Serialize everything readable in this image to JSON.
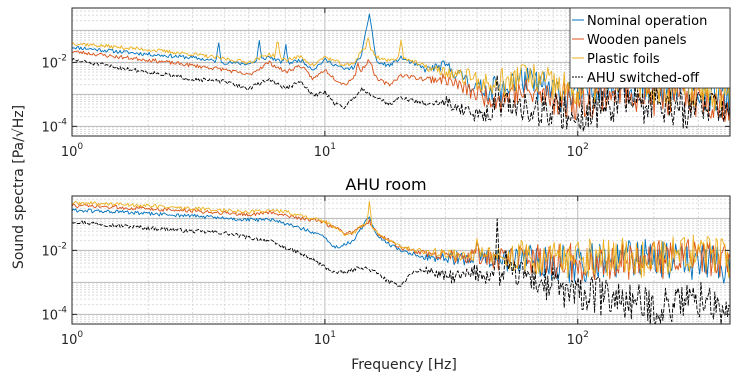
{
  "figure": {
    "ylabel": "Sound spectra [Pa/√Hz]",
    "xlabel": "Frequency [Hz]"
  },
  "chart_data": [
    {
      "type": "line",
      "title": "",
      "xlabel": "",
      "xscale": "log",
      "yscale": "log",
      "xlim": [
        1,
        400
      ],
      "ylim": [
        5e-05,
        0.5
      ],
      "xticks": [
        {
          "v": 1,
          "base": "10",
          "exp": "0"
        },
        {
          "v": 10,
          "base": "10",
          "exp": "1"
        },
        {
          "v": 100,
          "base": "10",
          "exp": "2"
        }
      ],
      "yticks": [
        {
          "v": 0.01,
          "base": "10",
          "exp": "-2"
        },
        {
          "v": 0.0001,
          "base": "10",
          "exp": "-4"
        }
      ],
      "grid": true,
      "legend": "top-right",
      "series": [
        {
          "name": "Nominal operation",
          "color": "#0072BD",
          "dash": "",
          "seed": 11,
          "x": [
            1,
            1.5,
            2,
            3,
            4,
            5,
            6,
            7,
            8,
            9,
            10,
            12,
            13,
            14,
            15,
            16,
            18,
            20,
            25,
            30,
            40,
            50,
            60,
            80,
            100,
            150,
            200,
            300,
            400
          ],
          "y": [
            0.03,
            0.022,
            0.018,
            0.014,
            0.01,
            0.009,
            0.015,
            0.009,
            0.012,
            0.006,
            0.012,
            0.006,
            0.007,
            0.018,
            0.35,
            0.01,
            0.008,
            0.014,
            0.006,
            0.008,
            0.0015,
            0.0012,
            0.003,
            0.0012,
            0.0009,
            0.003,
            0.0012,
            0.0012,
            0.0008
          ],
          "spikes": [
            [
              3.8,
              0.045
            ],
            [
              5.5,
              0.05
            ],
            [
              7,
              0.04
            ],
            [
              36,
              0.004
            ],
            [
              47,
              0.004
            ],
            [
              55,
              0.005
            ],
            [
              120,
              0.002
            ],
            [
              150,
              0.009
            ],
            [
              205,
              0.004
            ]
          ]
        },
        {
          "name": "Wooden panels",
          "color": "#D95319",
          "dash": "",
          "seed": 23,
          "x": [
            1,
            1.5,
            2,
            3,
            4,
            5,
            6,
            7,
            8,
            9,
            10,
            11,
            12,
            14,
            15,
            16,
            18,
            20,
            25,
            30,
            40,
            50,
            60,
            80,
            100,
            150,
            200,
            300,
            400
          ],
          "y": [
            0.022,
            0.015,
            0.012,
            0.008,
            0.006,
            0.004,
            0.01,
            0.005,
            0.008,
            0.003,
            0.006,
            0.003,
            0.002,
            0.006,
            0.012,
            0.003,
            0.002,
            0.004,
            0.003,
            0.003,
            0.001,
            0.0007,
            0.0012,
            0.0008,
            0.0006,
            0.0015,
            0.0008,
            0.0008,
            0.0005
          ],
          "spikes": [
            [
              13.5,
              0.01
            ],
            [
              55,
              0.002
            ],
            [
              150,
              0.0025
            ],
            [
              300,
              0.0018
            ]
          ]
        },
        {
          "name": "Plastic foils",
          "color": "#EDB120",
          "dash": "",
          "seed": 37,
          "x": [
            1,
            1.5,
            2,
            3,
            4,
            5,
            6,
            7,
            8,
            9,
            10,
            12,
            13,
            14,
            15,
            16,
            18,
            20,
            25,
            30,
            40,
            50,
            60,
            80,
            100,
            150,
            200,
            300,
            400
          ],
          "y": [
            0.04,
            0.03,
            0.025,
            0.018,
            0.013,
            0.01,
            0.018,
            0.012,
            0.015,
            0.008,
            0.015,
            0.008,
            0.009,
            0.025,
            0.03,
            0.015,
            0.011,
            0.016,
            0.007,
            0.005,
            0.0025,
            0.0015,
            0.004,
            0.0018,
            0.0012,
            0.006,
            0.002,
            0.0015,
            0.001
          ],
          "spikes": [
            [
              6.5,
              0.06
            ],
            [
              14.8,
              0.06
            ],
            [
              20,
              0.05
            ],
            [
              37,
              0.008
            ],
            [
              50,
              0.008
            ],
            [
              60,
              0.01
            ],
            [
              110,
              0.006
            ],
            [
              140,
              0.012
            ],
            [
              250,
              0.008
            ],
            [
              360,
              0.004
            ]
          ]
        },
        {
          "name": "AHU switched-off",
          "color": "#000000",
          "dash": "4,1.5",
          "seed": 51,
          "x": [
            1,
            1.5,
            2,
            3,
            4,
            5,
            6,
            7,
            8,
            9,
            10,
            11,
            12,
            14,
            16,
            18,
            20,
            25,
            30,
            40,
            50,
            60,
            80,
            100,
            150,
            200,
            300,
            400
          ],
          "y": [
            0.012,
            0.007,
            0.005,
            0.003,
            0.0025,
            0.0015,
            0.003,
            0.0015,
            0.0025,
            0.0009,
            0.0012,
            0.0005,
            0.0004,
            0.0015,
            0.0008,
            0.0005,
            0.0008,
            0.0005,
            0.0006,
            0.0002,
            0.0005,
            0.0004,
            0.0003,
            0.0002,
            0.0007,
            0.0004,
            0.0003,
            0.0003
          ],
          "spikes": [
            [
              48,
              0.004
            ],
            [
              150,
              0.003
            ],
            [
              205,
              0.002
            ],
            [
              300,
              0.0012
            ],
            [
              350,
              0.0015
            ]
          ]
        }
      ]
    },
    {
      "type": "line",
      "title": "AHU room",
      "xlabel": "",
      "xscale": "log",
      "yscale": "log",
      "xlim": [
        1,
        400
      ],
      "ylim": [
        5e-05,
        0.5
      ],
      "xticks": [
        {
          "v": 1,
          "base": "10",
          "exp": "0"
        },
        {
          "v": 10,
          "base": "10",
          "exp": "1"
        },
        {
          "v": 100,
          "base": "10",
          "exp": "2"
        }
      ],
      "yticks": [
        {
          "v": 0.01,
          "base": "10",
          "exp": "-2"
        },
        {
          "v": 0.0001,
          "base": "10",
          "exp": "-4"
        }
      ],
      "grid": true,
      "legend": "",
      "series": [
        {
          "name": "",
          "color": "#0072BD",
          "dash": "",
          "seed": 61,
          "x": [
            1,
            1.5,
            2,
            3,
            4,
            5,
            6,
            7,
            8,
            9,
            10,
            11,
            12,
            13,
            14,
            15,
            16,
            18,
            20,
            25,
            30,
            40,
            50,
            60,
            80,
            100,
            150,
            200,
            300,
            400
          ],
          "y": [
            0.18,
            0.16,
            0.14,
            0.12,
            0.1,
            0.09,
            0.09,
            0.07,
            0.05,
            0.035,
            0.025,
            0.012,
            0.015,
            0.02,
            0.05,
            0.12,
            0.03,
            0.015,
            0.01,
            0.006,
            0.006,
            0.005,
            0.004,
            0.006,
            0.004,
            0.004,
            0.005,
            0.006,
            0.004,
            0.003
          ],
          "spikes": [
            [
              40,
              0.02
            ],
            [
              48,
              0.01
            ],
            [
              65,
              0.015
            ],
            [
              150,
              0.012
            ],
            [
              250,
              0.01
            ]
          ]
        },
        {
          "name": "",
          "color": "#D95319",
          "dash": "",
          "seed": 73,
          "x": [
            1,
            1.5,
            2,
            3,
            4,
            5,
            6,
            7,
            8,
            9,
            10,
            11,
            12,
            13,
            14,
            15,
            16,
            18,
            20,
            25,
            30,
            40,
            50,
            60,
            80,
            100,
            150,
            200,
            300,
            400
          ],
          "y": [
            0.25,
            0.22,
            0.2,
            0.17,
            0.15,
            0.13,
            0.15,
            0.13,
            0.1,
            0.09,
            0.07,
            0.05,
            0.035,
            0.035,
            0.06,
            0.08,
            0.035,
            0.02,
            0.012,
            0.008,
            0.007,
            0.006,
            0.005,
            0.005,
            0.005,
            0.004,
            0.004,
            0.005,
            0.006,
            0.004
          ],
          "spikes": [
            [
              40,
              0.02
            ],
            [
              50,
              0.015
            ],
            [
              200,
              0.02
            ],
            [
              300,
              0.015
            ]
          ]
        },
        {
          "name": "",
          "color": "#EDB120",
          "dash": "",
          "seed": 89,
          "x": [
            1,
            1.5,
            2,
            3,
            4,
            5,
            6,
            7,
            8,
            9,
            10,
            11,
            12,
            13,
            14,
            15,
            16,
            18,
            20,
            25,
            30,
            40,
            50,
            60,
            80,
            100,
            150,
            200,
            300,
            400
          ],
          "y": [
            0.3,
            0.28,
            0.25,
            0.2,
            0.18,
            0.16,
            0.18,
            0.16,
            0.12,
            0.1,
            0.08,
            0.05,
            0.03,
            0.035,
            0.06,
            0.07,
            0.035,
            0.02,
            0.013,
            0.009,
            0.008,
            0.007,
            0.006,
            0.006,
            0.005,
            0.006,
            0.005,
            0.006,
            0.008,
            0.005
          ],
          "spikes": [
            [
              15,
              0.35
            ],
            [
              40,
              0.025
            ],
            [
              60,
              0.03
            ],
            [
              100,
              0.02
            ],
            [
              150,
              0.025
            ],
            [
              200,
              0.02
            ],
            [
              330,
              0.03
            ],
            [
              380,
              0.02
            ]
          ]
        },
        {
          "name": "",
          "color": "#000000",
          "dash": "4,1.5",
          "seed": 97,
          "x": [
            1,
            1.5,
            2,
            3,
            4,
            5,
            6,
            7,
            8,
            9,
            10,
            11,
            12,
            13,
            14,
            15,
            16,
            18,
            20,
            22,
            25,
            30,
            35,
            40,
            50,
            60,
            80,
            100,
            150,
            200,
            300,
            400
          ],
          "y": [
            0.08,
            0.06,
            0.05,
            0.04,
            0.035,
            0.025,
            0.02,
            0.012,
            0.008,
            0.005,
            0.003,
            0.002,
            0.002,
            0.0025,
            0.003,
            0.0025,
            0.002,
            0.001,
            0.0008,
            0.002,
            0.0025,
            0.0015,
            0.0015,
            0.002,
            0.0015,
            0.002,
            0.0006,
            0.0004,
            0.0003,
            0.00015,
            0.0003,
            0.0001
          ],
          "spikes": [
            [
              48,
              0.1
            ],
            [
              52,
              0.01
            ],
            [
              60,
              0.004
            ],
            [
              80,
              0.003
            ],
            [
              120,
              0.002
            ],
            [
              250,
              0.0008
            ],
            [
              330,
              0.0006
            ]
          ]
        }
      ]
    }
  ]
}
